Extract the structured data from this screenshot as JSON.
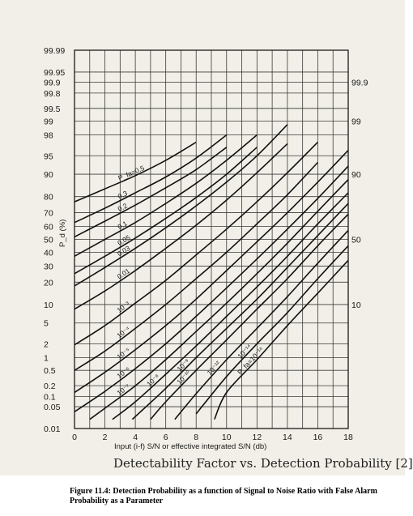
{
  "chart_data": {
    "type": "line",
    "title": "Detectability Factor vs. Detection Probability [2]",
    "xlabel": "Input (i-f) S/N or effective integrated S/N (db)",
    "ylabel": "P_d (%)",
    "xlim": [
      0,
      18
    ],
    "x_ticks": [
      "0",
      "2",
      "4",
      "6",
      "8",
      "10",
      "12",
      "14",
      "16",
      "18"
    ],
    "y_scale": "normal-probability",
    "y_ticks": [
      "0.01",
      "0.05",
      "0.1",
      "0.2",
      "0.5",
      "1",
      "2",
      "5",
      "10",
      "20",
      "30",
      "40",
      "50",
      "60",
      "70",
      "80",
      "90",
      "95",
      "98",
      "99",
      "99.5",
      "99.8",
      "99.9",
      "99.95",
      "99.99"
    ],
    "y_right_ticks": [
      "99.9",
      "99",
      "90",
      "50",
      "10"
    ],
    "grid": true,
    "series": [
      {
        "name": "P_fa = 0.5",
        "label": "P_fa=0.5",
        "x": [
          0,
          2,
          4,
          6,
          8
        ],
        "y": [
          77,
          84,
          89.5,
          94,
          97.2
        ]
      },
      {
        "name": "0.3",
        "label": "0.3",
        "x": [
          0,
          2,
          4,
          6,
          8,
          10
        ],
        "y": [
          63,
          73,
          82,
          89,
          94.5,
          98
        ]
      },
      {
        "name": "0.2",
        "label": "0.2",
        "x": [
          0,
          2,
          4,
          6,
          8,
          10
        ],
        "y": [
          52,
          64,
          75,
          84.5,
          91.5,
          96.5
        ]
      },
      {
        "name": "0.1",
        "label": "0.1",
        "x": [
          0,
          2,
          4,
          6,
          8,
          10,
          12
        ],
        "y": [
          37,
          50,
          63,
          76,
          86.5,
          94,
          98
        ]
      },
      {
        "name": "0.05",
        "label": "0.05",
        "x": [
          0,
          2,
          4,
          6,
          8,
          10,
          12
        ],
        "y": [
          25,
          37,
          51,
          66,
          79.5,
          90,
          96.5
        ]
      },
      {
        "name": "0.03",
        "label": "0.03",
        "x": [
          0,
          2,
          4,
          6,
          8,
          10,
          12,
          14
        ],
        "y": [
          18,
          29,
          43,
          59,
          74.5,
          87,
          95,
          98.8
        ]
      },
      {
        "name": "0.01",
        "label": "0.01",
        "x": [
          0,
          2,
          4,
          6,
          8,
          10,
          12,
          14
        ],
        "y": [
          8.5,
          15.5,
          27,
          43,
          61,
          78,
          90.5,
          97
        ]
      },
      {
        "name": "10^-3",
        "label": "10⁻³",
        "x": [
          0,
          2,
          4,
          6,
          8,
          10,
          12,
          14,
          16
        ],
        "y": [
          1.9,
          4.5,
          10.5,
          21,
          38,
          58,
          77,
          90.5,
          97.2
        ]
      },
      {
        "name": "10^-4",
        "label": "10⁻⁴",
        "x": [
          0,
          2,
          4,
          6,
          8,
          10,
          12,
          14,
          16
        ],
        "y": [
          0.5,
          1.4,
          4,
          10,
          22,
          40,
          62,
          81,
          93.5
        ]
      },
      {
        "name": "10^-5",
        "label": "10⁻⁵",
        "x": [
          0,
          2,
          4,
          6,
          8,
          10,
          12,
          14,
          16,
          18
        ],
        "y": [
          0.13,
          0.45,
          1.5,
          4.5,
          12,
          27,
          48,
          70,
          87,
          96
        ]
      },
      {
        "name": "10^-6",
        "label": "10⁻⁶",
        "x": [
          0,
          2,
          4,
          6,
          8,
          10,
          12,
          14,
          16,
          18
        ],
        "y": [
          0.035,
          0.14,
          0.55,
          2,
          6.5,
          17,
          35,
          58,
          79,
          92.5
        ]
      },
      {
        "name": "10^-7",
        "label": "10⁻⁷",
        "x": [
          1,
          2,
          4,
          6,
          8,
          10,
          12,
          14,
          16,
          18
        ],
        "y": [
          0.02,
          0.045,
          0.2,
          0.9,
          3.5,
          10.5,
          25,
          47,
          71,
          88
        ]
      },
      {
        "name": "10^-8",
        "label": "10⁻⁸",
        "x": [
          2.5,
          4,
          6,
          8,
          10,
          12,
          14,
          16,
          18
        ],
        "y": [
          0.02,
          0.07,
          0.4,
          1.8,
          6.5,
          17.5,
          37,
          62,
          82
        ]
      },
      {
        "name": "10^-9",
        "label": "10⁻⁹",
        "x": [
          3.8,
          6,
          8,
          10,
          12,
          14,
          16,
          18
        ],
        "y": [
          0.02,
          0.17,
          1,
          4,
          12,
          29,
          53,
          76
        ]
      },
      {
        "name": "10^-10",
        "label": "10⁻¹⁰",
        "x": [
          5,
          6,
          8,
          10,
          12,
          14,
          16,
          18
        ],
        "y": [
          0.02,
          0.07,
          0.5,
          2.4,
          8.5,
          22,
          45,
          69
        ]
      },
      {
        "name": "10^-12",
        "label": "10⁻¹²",
        "x": [
          6.6,
          8,
          10,
          12,
          14,
          16,
          18
        ],
        "y": [
          0.02,
          0.12,
          0.9,
          4,
          13,
          32,
          57
        ]
      },
      {
        "name": "10^-14",
        "label": "10⁻¹⁴",
        "x": [
          8,
          10,
          12,
          14,
          16,
          18
        ],
        "y": [
          0.03,
          0.35,
          2,
          7.5,
          22,
          45
        ]
      },
      {
        "name": "P_fa = 10^-16",
        "label": "P_fa=10⁻¹⁶",
        "x": [
          9.2,
          10,
          12,
          14,
          16,
          18
        ],
        "y": [
          0.02,
          0.13,
          0.9,
          4.5,
          14.5,
          34
        ]
      }
    ]
  },
  "figure": {
    "chart_title": "Detectability Factor vs. Detection Probability [2]",
    "caption": "Figure 11.4: Detection Probability as a function of Signal to Noise Ratio with False Alarm Probability as a Parameter"
  }
}
